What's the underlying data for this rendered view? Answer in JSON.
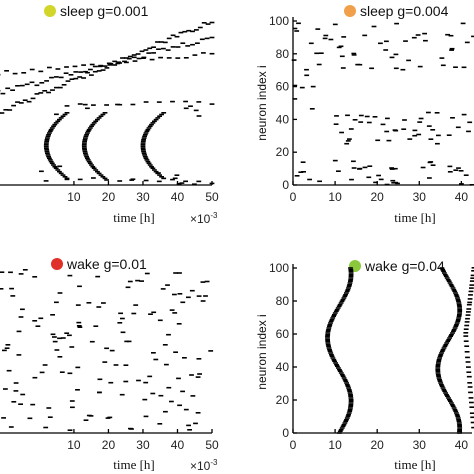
{
  "figure": {
    "panels": [
      {
        "key": "p0",
        "title": "sleep g=0.001",
        "dot_color": "#d2d62a",
        "xlabel": "time [h]",
        "ylabel": "",
        "x_exponent_base": "×10",
        "x_exponent": "-3"
      },
      {
        "key": "p1",
        "title": "sleep g=0.004",
        "dot_color": "#f0a04a",
        "xlabel": "time [h]",
        "ylabel": "neuron index i",
        "x_exponent_base": "",
        "x_exponent": ""
      },
      {
        "key": "p2",
        "title": "wake g=0.01",
        "dot_color": "#e0302a",
        "xlabel": "time [h]",
        "ylabel": "",
        "x_exponent_base": "×10",
        "x_exponent": "-3"
      },
      {
        "key": "p3",
        "title": "wake g=0.04",
        "dot_color": "#8cc83c",
        "xlabel": "time [h]",
        "ylabel": "neuron index i",
        "x_exponent_base": "",
        "x_exponent": ""
      }
    ]
  },
  "chart_data": [
    {
      "type": "scatter",
      "title": "sleep g=0.001",
      "xlabel": "time [h]",
      "ylabel": "",
      "x_scale_note": "×10^-3",
      "xlim": [
        -12,
        50
      ],
      "ylim": [
        0,
        100
      ],
      "xticks": [
        10,
        20,
        30,
        40,
        50
      ],
      "yticks": [],
      "patterns": [
        {
          "kind": "line",
          "points": [
            [
              -12,
              44
            ],
            [
              50,
              100
            ]
          ],
          "n": 56,
          "jitter": 1.5
        },
        {
          "kind": "line",
          "points": [
            [
              -12,
              56
            ],
            [
              50,
              90
            ]
          ],
          "n": 45,
          "jitter": 1.5
        },
        {
          "kind": "line",
          "points": [
            [
              -12,
              68
            ],
            [
              50,
              80
            ]
          ],
          "n": 26,
          "jitter": 1.2
        },
        {
          "kind": "arc",
          "t0": 2,
          "w": 6,
          "y1": 4,
          "y2": 44,
          "n": 40
        },
        {
          "kind": "arc",
          "t0": 13,
          "w": 6,
          "y1": 4,
          "y2": 44,
          "n": 40
        },
        {
          "kind": "arc",
          "t0": 30,
          "w": 6,
          "y1": 4,
          "y2": 44,
          "n": 40
        },
        {
          "kind": "line",
          "points": [
            [
              8,
              48
            ],
            [
              50,
              50
            ]
          ],
          "n": 12,
          "jitter": 1.5
        },
        {
          "kind": "line",
          "points": [
            [
              8,
              4
            ],
            [
              50,
              2
            ]
          ],
          "n": 12,
          "jitter": 1.2
        },
        {
          "kind": "random",
          "x": [
            -12,
            50
          ],
          "y": [
            0,
            12
          ],
          "n": 10
        },
        {
          "kind": "random",
          "x": [
            -12,
            50
          ],
          "y": [
            42,
            52
          ],
          "n": 8
        }
      ]
    },
    {
      "type": "scatter",
      "title": "sleep g=0.004",
      "xlabel": "time [h]",
      "ylabel": "neuron index i",
      "xlim": [
        0,
        43
      ],
      "ylim": [
        0,
        100
      ],
      "xticks": [
        0,
        10,
        20,
        30,
        40
      ],
      "yticks": [
        0,
        20,
        40,
        60,
        80,
        100
      ],
      "patterns": [
        {
          "kind": "random",
          "x": [
            0,
            43
          ],
          "y": [
            70,
            100
          ],
          "n": 52
        },
        {
          "kind": "random",
          "x": [
            10,
            43
          ],
          "y": [
            25,
            45
          ],
          "n": 42
        },
        {
          "kind": "random",
          "x": [
            0,
            43
          ],
          "y": [
            0,
            15
          ],
          "n": 40
        },
        {
          "kind": "random",
          "x": [
            0,
            5
          ],
          "y": [
            45,
            70
          ],
          "n": 6
        }
      ]
    },
    {
      "type": "scatter",
      "title": "wake g=0.01",
      "xlabel": "time [h]",
      "ylabel": "",
      "x_scale_note": "×10^-3",
      "xlim": [
        -12,
        50
      ],
      "ylim": [
        0,
        100
      ],
      "xticks": [
        10,
        20,
        30,
        40,
        50
      ],
      "yticks": [],
      "patterns": [
        {
          "kind": "random",
          "x": [
            -12,
            50
          ],
          "y": [
            0,
            100
          ],
          "n": 150
        }
      ]
    },
    {
      "type": "scatter",
      "title": "wake g=0.04",
      "xlabel": "time [h]",
      "ylabel": "neuron index i",
      "xlim": [
        0,
        43
      ],
      "ylim": [
        0,
        100
      ],
      "xticks": [
        0,
        10,
        20,
        30,
        40
      ],
      "yticks": [
        0,
        20,
        40,
        60,
        80,
        100
      ],
      "patterns": [
        {
          "kind": "wave",
          "t0": 11,
          "amp": 2.8,
          "freq": 1.3,
          "phase": 0,
          "n": 100
        },
        {
          "kind": "wave",
          "t0": 37,
          "amp": 2.6,
          "freq": 1.4,
          "phase": 1.3,
          "n": 100
        },
        {
          "kind": "line",
          "points": [
            [
              43,
              100
            ],
            [
              41,
              60
            ],
            [
              43,
              0
            ]
          ],
          "n": 40,
          "jitter": 0.4
        }
      ]
    }
  ]
}
